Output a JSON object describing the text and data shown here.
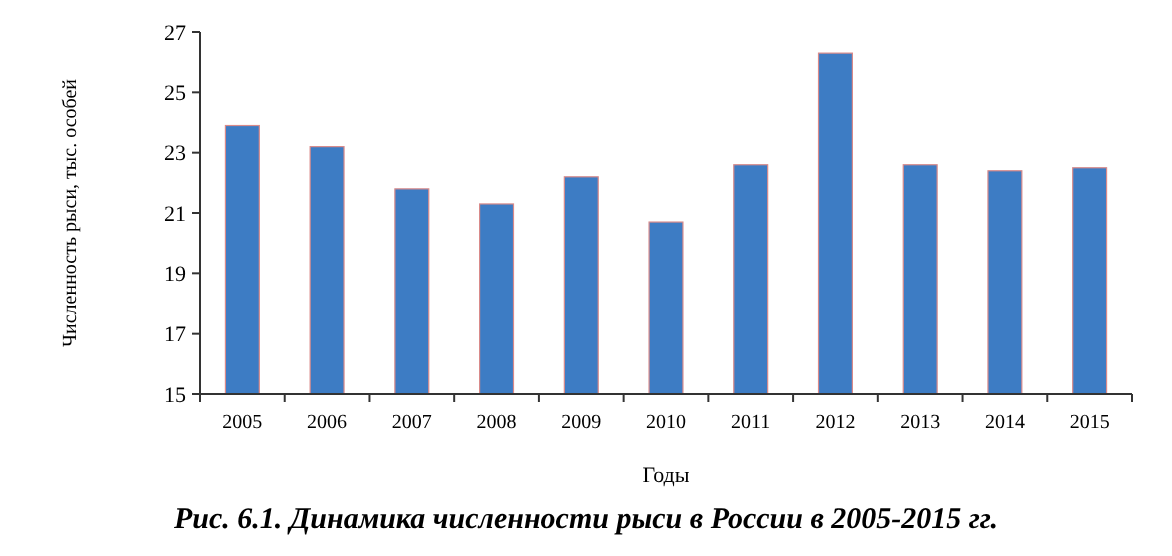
{
  "chart_data": {
    "type": "bar",
    "title": "Рис. 6.1. Динамика численности рыси в России в 2005-2015 гг.",
    "xlabel": "Годы",
    "ylabel": "Численность рыси, тыс. особей",
    "categories": [
      "2005",
      "2006",
      "2007",
      "2008",
      "2009",
      "2010",
      "2011",
      "2012",
      "2013",
      "2014",
      "2015"
    ],
    "values": [
      23.9,
      23.2,
      21.8,
      21.3,
      22.2,
      20.7,
      22.6,
      26.3,
      22.6,
      22.4,
      22.5
    ],
    "color": "#3d7cc4",
    "ylim": [
      15,
      27
    ],
    "yticks": [
      15,
      17,
      19,
      21,
      23,
      25,
      27
    ],
    "grid": false
  }
}
